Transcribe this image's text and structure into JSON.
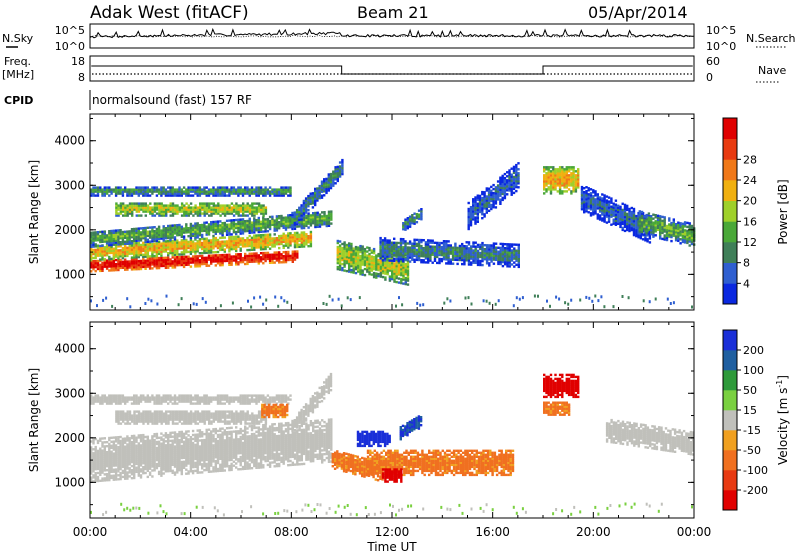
{
  "header": {
    "radar": "Adak West (fitACF)",
    "beam": "Beam 21",
    "date": "05/Apr/2014"
  },
  "noise_panel": {
    "left_label": "N.Sky",
    "right_label": "N.Search",
    "left_ticks": [
      "10^5",
      "10^0"
    ],
    "right_ticks": [
      "10^5",
      "10^0"
    ]
  },
  "freq_panel": {
    "left_label_top": "Freq.",
    "left_label_bottom": "[MHz]",
    "right_label": "Nave",
    "left_ticks": [
      "18",
      "8"
    ],
    "right_ticks": [
      "60",
      "0"
    ]
  },
  "cpid": {
    "label": "CPID",
    "text": "normalsound (fast) 157 RF"
  },
  "colors": {
    "power": [
      "#0a28e0",
      "#2f5fd0",
      "#3f7f58",
      "#4aa838",
      "#9fd02a",
      "#f0b010",
      "#f07818",
      "#e83a10",
      "#e00000"
    ],
    "velocity": [
      "#1a2fd8",
      "#1f5fa0",
      "#2e9a3a",
      "#7ad040",
      "#c0c0bb",
      "#f0a020",
      "#f07020",
      "#e83a12",
      "#e00000"
    ]
  },
  "chart_data": [
    {
      "type": "heatmap",
      "name": "power",
      "ylabel": "Slant Range [km]",
      "yticks": [
        "1000",
        "2000",
        "3000",
        "4000"
      ],
      "ylim": [
        200,
        4600
      ],
      "xlim": [
        0,
        24
      ],
      "colorbar": {
        "label": "Power [dB]",
        "ticks": [
          "4",
          "8",
          "12",
          "16",
          "20",
          "24",
          "28"
        ],
        "range": [
          0,
          32
        ]
      },
      "features": [
        {
          "t0": 0.0,
          "t1": 8.2,
          "r0": 1050,
          "r1": 1320,
          "dr": 220,
          "v": 30
        },
        {
          "t0": 0.0,
          "t1": 8.8,
          "r0": 1300,
          "r1": 1650,
          "dr": 320,
          "v": 20
        },
        {
          "t0": 0.0,
          "t1": 9.6,
          "r0": 1600,
          "r1": 1950,
          "dr": 480,
          "v": 12
        },
        {
          "t0": 1.0,
          "t1": 7.0,
          "r0": 2300,
          "r1": 2600,
          "dr": 0,
          "v": 16
        },
        {
          "t0": 0.0,
          "t1": 8.0,
          "r0": 2750,
          "r1": 2950,
          "dr": 0,
          "v": 10
        },
        {
          "t0": 8.0,
          "t1": 10.0,
          "r0": 2000,
          "r1": 2400,
          "dr": 1200,
          "v": 8
        },
        {
          "t0": 9.8,
          "t1": 12.6,
          "r0": 1100,
          "r1": 1750,
          "dr": -350,
          "v": 16
        },
        {
          "t0": 11.5,
          "t1": 17.0,
          "r0": 1300,
          "r1": 1800,
          "dr": -150,
          "v": 8
        },
        {
          "t0": 12.4,
          "t1": 13.2,
          "r0": 1950,
          "r1": 2200,
          "dr": 300,
          "v": 10
        },
        {
          "t0": 15.0,
          "t1": 17.0,
          "r0": 2000,
          "r1": 2600,
          "dr": 900,
          "v": 6
        },
        {
          "t0": 18.0,
          "t1": 19.4,
          "r0": 2800,
          "r1": 3400,
          "dr": 0,
          "v": 20
        },
        {
          "t0": 19.5,
          "t1": 22.2,
          "r0": 2400,
          "r1": 3000,
          "dr": -700,
          "v": 6
        },
        {
          "t0": 21.8,
          "t1": 24.0,
          "r0": 1900,
          "r1": 2400,
          "dr": -300,
          "v": 12
        }
      ]
    },
    {
      "type": "heatmap",
      "name": "velocity",
      "ylabel": "Slant Range [km]",
      "yticks": [
        "1000",
        "2000",
        "3000",
        "4000"
      ],
      "ylim": [
        200,
        4600
      ],
      "xlim": [
        0,
        24
      ],
      "xlabel": "Time UT",
      "xticks": [
        "00:00",
        "04:00",
        "08:00",
        "12:00",
        "16:00",
        "20:00",
        "00:00"
      ],
      "colorbar": {
        "label": "Velocity [m s",
        "label_sup": "-1",
        "label_end": "]",
        "ticks": [
          "200",
          "100",
          "50",
          "15",
          "-15",
          "-50",
          "-100",
          "-200"
        ],
        "range": [
          -250,
          250
        ]
      },
      "features": [
        {
          "t0": 0.0,
          "t1": 9.6,
          "r0": 1000,
          "r1": 1950,
          "dr": 450,
          "v": 0
        },
        {
          "t0": 1.0,
          "t1": 7.0,
          "r0": 2300,
          "r1": 2600,
          "dr": 0,
          "v": 0
        },
        {
          "t0": 0.0,
          "t1": 8.0,
          "r0": 2750,
          "r1": 2950,
          "dr": 0,
          "v": 0
        },
        {
          "t0": 6.8,
          "t1": 7.8,
          "r0": 2450,
          "r1": 2750,
          "dr": 0,
          "v": -60
        },
        {
          "t0": 8.0,
          "t1": 9.6,
          "r0": 2000,
          "r1": 2400,
          "dr": 1100,
          "v": 0
        },
        {
          "t0": 9.6,
          "t1": 11.6,
          "r0": 1300,
          "r1": 1750,
          "dr": -300,
          "v": -60
        },
        {
          "t0": 10.6,
          "t1": 11.9,
          "r0": 1800,
          "r1": 2150,
          "dr": 0,
          "v": 220
        },
        {
          "t0": 11.0,
          "t1": 16.8,
          "r0": 1150,
          "r1": 1700,
          "dr": 0,
          "v": -60
        },
        {
          "t0": 11.6,
          "t1": 12.4,
          "r0": 1000,
          "r1": 1300,
          "dr": 0,
          "v": -220
        },
        {
          "t0": 12.3,
          "t1": 13.2,
          "r0": 1950,
          "r1": 2250,
          "dr": 300,
          "v": 200
        },
        {
          "t0": 18.0,
          "t1": 19.4,
          "r0": 2900,
          "r1": 3400,
          "dr": 0,
          "v": -220
        },
        {
          "t0": 18.0,
          "t1": 19.0,
          "r0": 2500,
          "r1": 2800,
          "dr": 0,
          "v": -60
        },
        {
          "t0": 20.5,
          "t1": 24.0,
          "r0": 1900,
          "r1": 2400,
          "dr": -300,
          "v": 0
        }
      ]
    }
  ]
}
